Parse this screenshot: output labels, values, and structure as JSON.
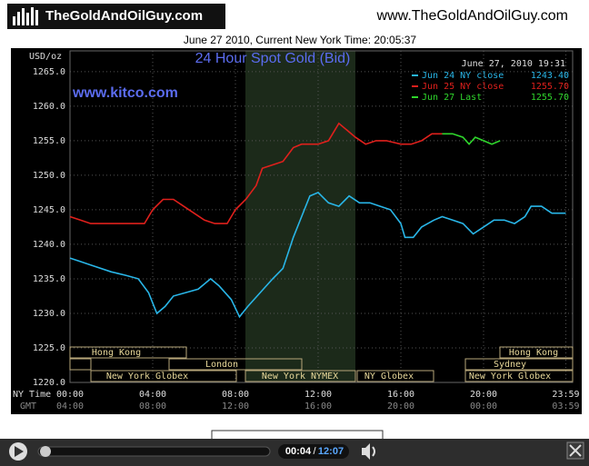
{
  "header": {
    "logo": "TheGoldAndOilGuy.com",
    "url": "www.TheGoldAndOilGuy.com",
    "time_line": "June 27 2010, Current New York Time: 20:05:37"
  },
  "chart_data": {
    "type": "line",
    "title": "24 Hour Spot Gold (Bid)",
    "y_label": "USD/oz",
    "watermark": "www.kitco.com",
    "timestamp": "June 27, 2010 19:31",
    "x_row_label": "NY Time",
    "x2_row_label": "GMT",
    "xlim": [
      0,
      24
    ],
    "ylim": [
      1220,
      1268
    ],
    "xticks": [
      {
        "value": 0,
        "label": "00:00"
      },
      {
        "value": 4,
        "label": "04:00"
      },
      {
        "value": 8,
        "label": "08:00"
      },
      {
        "value": 12,
        "label": "12:00"
      },
      {
        "value": 16,
        "label": "16:00"
      },
      {
        "value": 20,
        "label": "20:00"
      },
      {
        "value": 23.98,
        "label": "23:59"
      }
    ],
    "x2ticks": [
      "04:00",
      "08:00",
      "12:00",
      "16:00",
      "20:00",
      "00:00",
      "03:59"
    ],
    "yticks": [
      {
        "value": 1220,
        "label": "1220.0"
      },
      {
        "value": 1225,
        "label": "1225.0"
      },
      {
        "value": 1230,
        "label": "1230.0"
      },
      {
        "value": 1235,
        "label": "1235.0"
      },
      {
        "value": 1240,
        "label": "1240.0"
      },
      {
        "value": 1245,
        "label": "1245.0"
      },
      {
        "value": 1250,
        "label": "1250.0"
      },
      {
        "value": 1255,
        "label": "1255.0"
      },
      {
        "value": 1260,
        "label": "1260.0"
      },
      {
        "value": 1265,
        "label": "1265.0"
      }
    ],
    "grid": true,
    "series": [
      {
        "name": "Jun 24 NY close",
        "last": "1243.40",
        "color": "#29b6e8",
        "x": [
          0,
          0.5,
          1,
          2,
          2.7,
          3.3,
          3.8,
          4.2,
          4.6,
          5,
          5.6,
          6.2,
          6.8,
          7.2,
          7.8,
          8.2,
          8.6,
          9.2,
          9.8,
          10.3,
          10.8,
          11.2,
          11.6,
          12,
          12.5,
          13,
          13.5,
          14,
          14.5,
          15,
          15.5,
          16,
          16.2,
          16.6,
          17,
          17.6,
          18,
          18.5,
          19,
          19.5,
          20,
          20.5,
          21,
          21.5,
          22,
          22.3,
          22.8,
          23.3,
          23.98
        ],
        "values": [
          1238,
          1237.5,
          1237,
          1236,
          1235.5,
          1235,
          1233,
          1230,
          1231,
          1232.5,
          1233,
          1233.5,
          1235,
          1234,
          1232,
          1229.5,
          1231,
          1233,
          1235,
          1236.5,
          1241,
          1244,
          1247,
          1247.5,
          1246,
          1245.5,
          1247,
          1246,
          1246,
          1245.5,
          1245,
          1243,
          1241,
          1241,
          1242.5,
          1243.5,
          1244,
          1243.5,
          1243,
          1241.5,
          1242.5,
          1243.5,
          1243.5,
          1243,
          1244,
          1245.5,
          1245.5,
          1244.5,
          1244.5
        ]
      },
      {
        "name": "Jun 25 NY close",
        "last": "1255.70",
        "color": "#e0201c",
        "x": [
          0,
          0.5,
          1,
          2,
          3,
          3.6,
          4,
          4.5,
          5,
          5.5,
          6,
          6.5,
          7,
          7.6,
          8,
          8.5,
          9,
          9.3,
          9.8,
          10.3,
          10.8,
          11.2,
          11.6,
          12,
          12.5,
          13,
          13.4,
          13.8,
          14.3,
          14.8,
          15.3,
          16,
          16.5,
          17,
          17.5,
          18
        ],
        "values": [
          1244,
          1243.5,
          1243,
          1243,
          1243,
          1243,
          1245,
          1246.5,
          1246.5,
          1245.5,
          1244.5,
          1243.5,
          1243,
          1243,
          1245,
          1246.5,
          1248.5,
          1251,
          1251.5,
          1252,
          1254,
          1254.5,
          1254.5,
          1254.5,
          1255,
          1257.5,
          1256.5,
          1255.5,
          1254.5,
          1255,
          1255,
          1254.5,
          1254.5,
          1255,
          1256,
          1256
        ]
      },
      {
        "name": "Jun 27 Last",
        "last": "1255.70",
        "color": "#2fd62c",
        "x": [
          18,
          18.5,
          19,
          19.3,
          19.6,
          20,
          20.4,
          20.8
        ],
        "values": [
          1256,
          1256,
          1255.5,
          1254.5,
          1255.5,
          1255,
          1254.5,
          1255
        ]
      }
    ],
    "sessions": [
      "Hong Kong",
      "London",
      "New York Globex",
      "New York NYMEX",
      "NY Globex",
      "Hong Kong",
      "Sydney",
      "New York Globex"
    ]
  },
  "player": {
    "elapsed": "00:04",
    "total": "12:07"
  }
}
